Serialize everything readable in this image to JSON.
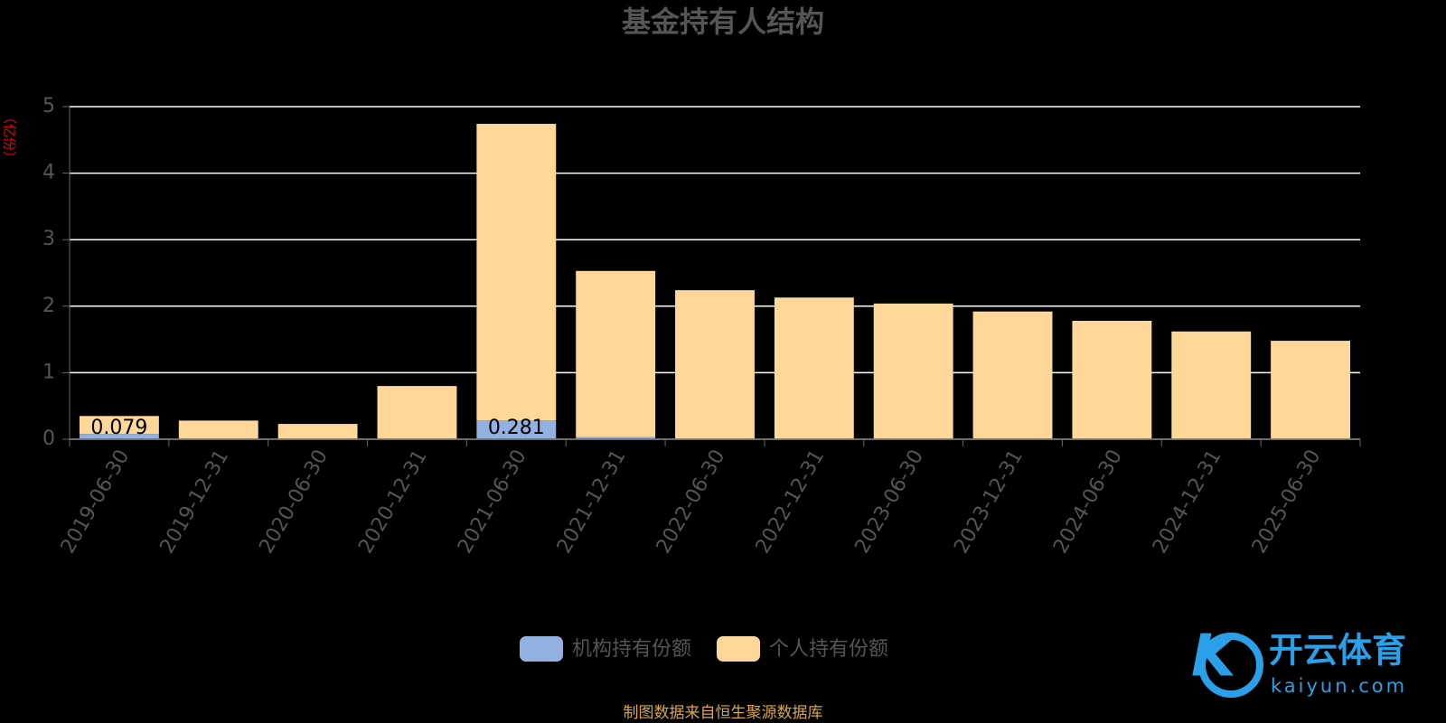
{
  "chart_data": {
    "type": "stacked_bar",
    "title": "基金持有人结构",
    "y_unit": "（亿份）",
    "categories": [
      "2019-06-30",
      "2019-12-31",
      "2020-06-30",
      "2020-12-31",
      "2021-06-30",
      "2021-12-31",
      "2022-06-30",
      "2022-12-31",
      "2023-06-30",
      "2023-12-31",
      "2024-06-30",
      "2024-12-31",
      "2025-06-30"
    ],
    "series": [
      {
        "name": "机构持有份额",
        "color": "#92b0e0",
        "values": [
          0.079,
          0,
          0,
          0,
          0.281,
          0.03,
          0,
          0,
          0,
          0.01,
          0,
          0,
          0
        ],
        "value_labels": [
          "0.079",
          null,
          null,
          null,
          "0.281",
          null,
          null,
          null,
          null,
          null,
          null,
          null,
          null
        ]
      },
      {
        "name": "个人持有份额",
        "color": "#ffd899",
        "values": [
          0.27,
          0.28,
          0.23,
          0.8,
          4.46,
          2.5,
          2.24,
          2.13,
          2.04,
          1.91,
          1.78,
          1.62,
          1.48
        ]
      }
    ],
    "ylim": [
      0,
      5
    ],
    "yticks": [
      0,
      1,
      2,
      3,
      4,
      5
    ],
    "grid": true,
    "source": "制图数据来自恒生聚源数据库"
  },
  "watermark": {
    "brand": "开云体育",
    "site": "kaiyun.com"
  }
}
